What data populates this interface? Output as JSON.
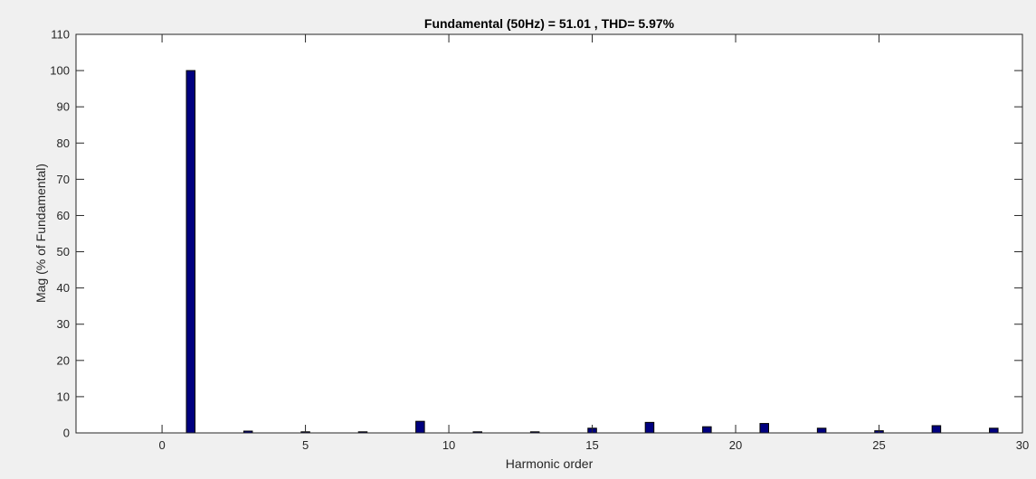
{
  "chart_data": {
    "type": "bar",
    "title": "Fundamental (50Hz) = 51.01 , THD= 5.97%",
    "xlabel": "Harmonic order",
    "ylabel": "Mag (% of Fundamental)",
    "xlim": [
      -3,
      30
    ],
    "ylim": [
      0,
      110
    ],
    "xticks": [
      0,
      5,
      10,
      15,
      20,
      25,
      30
    ],
    "yticks": [
      0,
      10,
      20,
      30,
      40,
      50,
      60,
      70,
      80,
      90,
      100,
      110
    ],
    "grid": false,
    "legend": "none",
    "bar_color": "#00007f",
    "bar_edge_color": "#000000",
    "background_color": "#ffffff",
    "figure_color": "#f0f0f0",
    "x": [
      1,
      3,
      5,
      7,
      9,
      11,
      13,
      15,
      17,
      19,
      21,
      23,
      25,
      27,
      29
    ],
    "values": [
      100,
      0.5,
      0.3,
      0.3,
      3.2,
      0.3,
      0.3,
      1.3,
      2.9,
      1.7,
      2.6,
      1.3,
      0.6,
      2.0,
      1.3
    ]
  }
}
